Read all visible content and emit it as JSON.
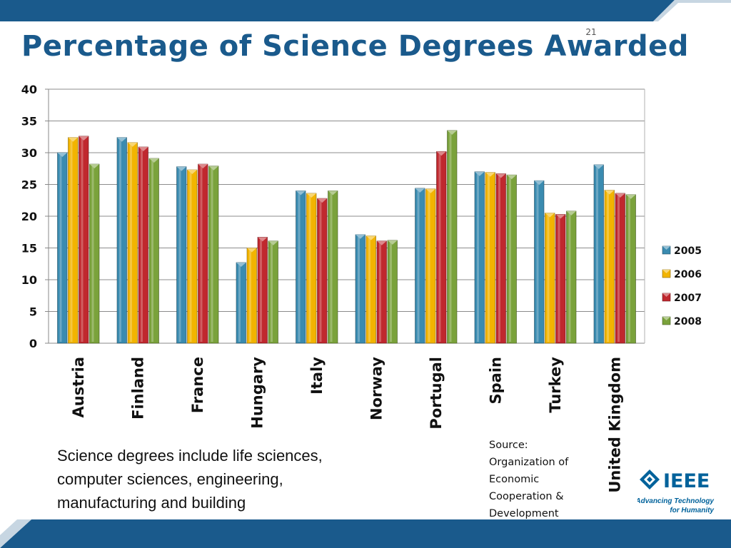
{
  "slide": {
    "number": "21",
    "title": "Percentage of Science Degrees Awarded",
    "note_lines": [
      "Science degrees include life sciences,",
      "computer sciences, engineering,",
      "manufacturing and building"
    ],
    "source_lines": [
      "Source:",
      "Organization of",
      "Economic",
      "Cooperation &",
      "Development"
    ],
    "logo": {
      "wordmark": "IEEE",
      "tagline_1": "Advancing Technology",
      "tagline_2": "for Humanity"
    },
    "colors": {
      "title": "#1a5a8c",
      "bars_top": "#1a5a8c",
      "logo": "#00629b"
    }
  },
  "chart_data": {
    "type": "bar",
    "categories": [
      "Austria",
      "Finland",
      "France",
      "Hungary",
      "Italy",
      "Norway",
      "Portugal",
      "Spain",
      "Turkey",
      "United Kingdom"
    ],
    "series": [
      {
        "name": "2005",
        "color": "#3a8bb0",
        "values": [
          30.0,
          32.4,
          27.8,
          12.7,
          24.0,
          17.1,
          24.4,
          27.0,
          25.6,
          28.1
        ]
      },
      {
        "name": "2006",
        "color": "#f2b400",
        "values": [
          32.4,
          31.6,
          27.3,
          15.0,
          23.6,
          16.9,
          24.3,
          26.9,
          20.5,
          24.1
        ]
      },
      {
        "name": "2007",
        "color": "#c0282e",
        "values": [
          32.6,
          30.9,
          28.2,
          16.7,
          22.8,
          16.1,
          30.2,
          26.7,
          20.3,
          23.6
        ]
      },
      {
        "name": "2008",
        "color": "#7aa23b",
        "values": [
          28.2,
          29.1,
          27.9,
          16.1,
          24.0,
          16.2,
          33.5,
          26.5,
          20.8,
          23.4
        ]
      }
    ],
    "ylim": [
      0,
      40
    ],
    "yticks": [
      0,
      5,
      10,
      15,
      20,
      25,
      30,
      35,
      40
    ],
    "grid": true,
    "legend": "right"
  }
}
